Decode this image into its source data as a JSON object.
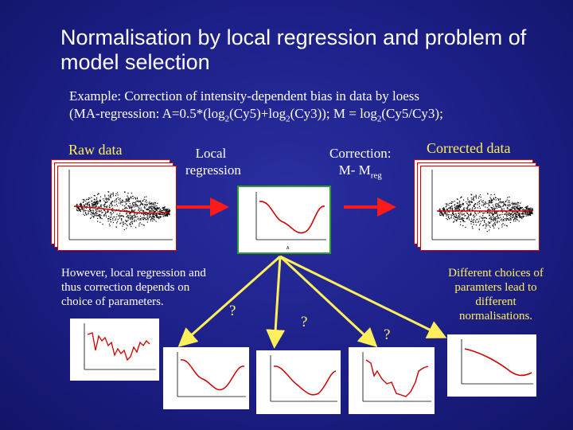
{
  "title": "Normalisation by local regression and problem of model selection",
  "example": {
    "line1": "Example: Correction of intensity-dependent bias in data by loess",
    "line2_parts": [
      "(MA-regression: A=0.5*(log",
      "2",
      "(Cy5)+log",
      "2",
      "(Cy3)); M = log",
      "2",
      "(Cy5/Cy3);"
    ]
  },
  "labels": {
    "raw_data": "Raw data",
    "local_regression_1": "Local",
    "local_regression_2": "regression",
    "correction_1": "Correction:",
    "correction_2_main": "M- M",
    "correction_2_sub": "reg",
    "corrected_data": "Corrected data"
  },
  "note": {
    "line1": "However, local regression and",
    "line2": "thus correction depends on",
    "line3": "choice of parameters."
  },
  "right_note": {
    "line1": "Different choices of",
    "line2": "paramters lead to",
    "line3": "different",
    "line4": "normalisations."
  },
  "question_marks": [
    "?",
    "?",
    "?"
  ],
  "colors": {
    "background": "#1c1f86",
    "title_text": "#ffffff",
    "label_yellow": "#ffef5a",
    "arrow_red": "#ff1a1a",
    "arrow_yellow": "#ffef5a",
    "curve_red": "#d00000",
    "box_green": "#2e9e2e"
  }
}
